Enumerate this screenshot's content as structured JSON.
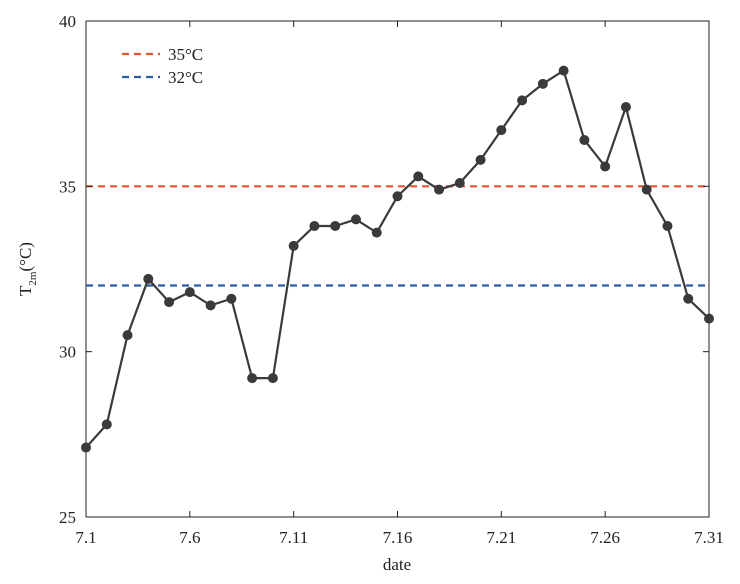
{
  "chart_data": {
    "type": "line",
    "xlabel": "date",
    "ylabel_main": "T",
    "ylabel_sub": "2m",
    "ylabel_unit": "(°C)",
    "xlim": [
      1,
      31
    ],
    "ylim": [
      25,
      40
    ],
    "x_tick_values": [
      1,
      6,
      11,
      16,
      21,
      26,
      31
    ],
    "x_tick_labels": [
      "7.1",
      "7.6",
      "7.11",
      "7.16",
      "7.21",
      "7.26",
      "7.31"
    ],
    "y_tick_values": [
      25,
      30,
      35,
      40
    ],
    "y_tick_labels": [
      "25",
      "30",
      "35",
      "40"
    ],
    "series": [
      {
        "name": "T2m",
        "color": "#3a3a3a",
        "x": [
          1,
          2,
          3,
          4,
          5,
          6,
          7,
          8,
          9,
          10,
          11,
          12,
          13,
          14,
          15,
          16,
          17,
          18,
          19,
          20,
          21,
          22,
          23,
          24,
          25,
          26,
          27,
          28,
          29,
          30,
          31
        ],
        "values": [
          27.1,
          27.8,
          30.5,
          32.2,
          31.5,
          31.8,
          31.4,
          31.6,
          29.2,
          29.2,
          33.2,
          33.8,
          33.8,
          34.0,
          33.6,
          34.7,
          35.3,
          34.9,
          35.1,
          35.8,
          36.7,
          37.6,
          38.1,
          38.5,
          36.4,
          35.6,
          37.4,
          34.9,
          33.8,
          31.6,
          31.0
        ]
      }
    ],
    "reference_lines": [
      {
        "label": "35°C",
        "value": 35,
        "color": "#e8532e"
      },
      {
        "label": "32°C",
        "value": 32,
        "color": "#2e5aa8"
      }
    ],
    "legend_position": "top-left",
    "grid": false
  }
}
